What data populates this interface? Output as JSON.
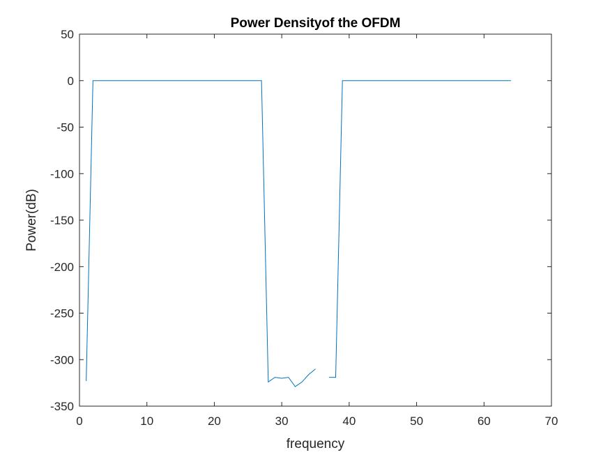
{
  "chart_data": {
    "type": "line",
    "title": "Power Densityof the OFDM",
    "xlabel": "frequency",
    "ylabel": "Power(dB)",
    "xlim": [
      0,
      70
    ],
    "ylim": [
      -350,
      50
    ],
    "xticks": [
      0,
      10,
      20,
      30,
      40,
      50,
      60,
      70
    ],
    "yticks": [
      50,
      0,
      -50,
      -100,
      -150,
      -200,
      -250,
      -300,
      -350
    ],
    "grid": false,
    "line_color": "#0072BD",
    "series": [
      {
        "segments": [
          {
            "x": [
              1,
              2,
              3,
              4,
              5,
              6,
              7,
              8,
              9,
              10,
              11,
              12,
              13,
              14,
              15,
              16,
              17,
              18,
              19,
              20,
              21,
              22,
              23,
              24,
              25,
              26,
              27,
              28,
              29,
              30,
              31,
              32,
              33,
              34,
              35
            ],
            "y": [
              -323,
              0,
              0,
              0,
              0,
              0,
              0,
              0,
              0,
              0,
              0,
              0,
              0,
              0,
              0,
              0,
              0,
              0,
              0,
              0,
              0,
              0,
              0,
              0,
              0,
              0,
              0,
              -324,
              -319,
              -320,
              -319,
              -329,
              -324,
              -316,
              -310
            ]
          },
          {
            "x": [
              37,
              38,
              39,
              40,
              41,
              42,
              43,
              44,
              45,
              46,
              47,
              48,
              49,
              50,
              51,
              52,
              53,
              54,
              55,
              56,
              57,
              58,
              59,
              60,
              61,
              62,
              63,
              64
            ],
            "y": [
              -319,
              -319,
              0,
              0,
              0,
              0,
              0,
              0,
              0,
              0,
              0,
              0,
              0,
              0,
              0,
              0,
              0,
              0,
              0,
              0,
              0,
              0,
              0,
              0,
              0,
              0,
              0,
              0
            ]
          }
        ]
      }
    ]
  }
}
